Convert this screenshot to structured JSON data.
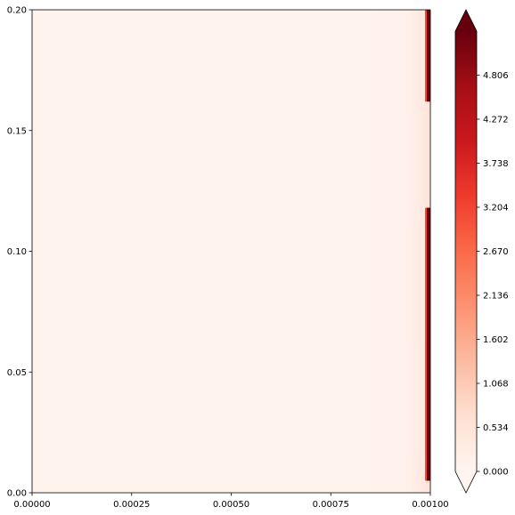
{
  "chart_data": {
    "type": "heatmap",
    "title": "",
    "xlabel": "",
    "ylabel": "",
    "xlim": [
      0,
      0.001
    ],
    "ylim": [
      0,
      0.2
    ],
    "x_ticks": [
      "0.00000",
      "0.00025",
      "0.00050",
      "0.00075",
      "0.00100"
    ],
    "x_tick_values": [
      0,
      0.00025,
      0.0005,
      0.00075,
      0.001
    ],
    "y_ticks": [
      "0.00",
      "0.05",
      "0.10",
      "0.15",
      "0.20"
    ],
    "y_tick_values": [
      0,
      0.05,
      0.1,
      0.15,
      0.2
    ],
    "colormap": "Reds",
    "colorbar": {
      "ticks": [
        "0.000",
        "0.534",
        "1.068",
        "1.602",
        "2.136",
        "2.670",
        "3.204",
        "3.738",
        "4.272",
        "4.806"
      ],
      "tick_values": [
        0,
        0.534,
        1.068,
        1.602,
        2.136,
        2.67,
        3.204,
        3.738,
        4.272,
        4.806
      ],
      "range": [
        0,
        5.34
      ],
      "extend": "both",
      "colors": [
        "#fff5f0",
        "#fee0d2",
        "#fcbba1",
        "#fc9272",
        "#fb6a4a",
        "#ef3b2c",
        "#cb181d",
        "#a50f15",
        "#67000d"
      ]
    },
    "field": {
      "background_value": 0.05,
      "high_value_edge_x": 0.001,
      "high_value_bands_y": [
        [
          0.005,
          0.118
        ],
        [
          0.162,
          0.2
        ]
      ],
      "edge_value": 5.3
    }
  }
}
